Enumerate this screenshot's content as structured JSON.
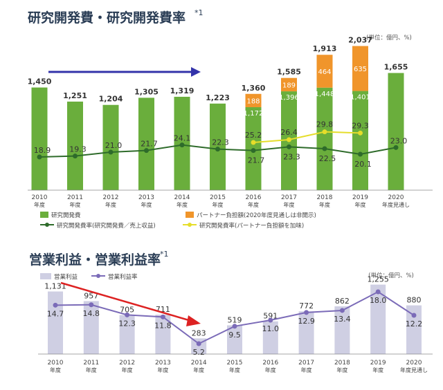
{
  "chart_data": [
    {
      "type": "bar",
      "title": "研究開発費・研究開発費率",
      "title_sup": "*1",
      "unit": "(単位：億円、%)",
      "x": [
        "2010",
        "2011",
        "2012",
        "2013",
        "2014",
        "2015",
        "2016",
        "2017",
        "2018",
        "2019",
        "2020"
      ],
      "x_sub": [
        "年度",
        "年度",
        "年度",
        "年度",
        "年度",
        "年度",
        "年度",
        "年度",
        "年度",
        "年度",
        "年度見通し"
      ],
      "ylim": [
        0,
        2100
      ],
      "series": [
        {
          "name": "研究開発費",
          "type": "bar",
          "color": "#6aae3c",
          "values": [
            1450,
            1251,
            1204,
            1305,
            1319,
            1223,
            1172,
            1396,
            1448,
            1401,
            1655
          ]
        },
        {
          "name": "パートナー負担額(2020年度見通しは非開示)",
          "type": "bar",
          "stacked": true,
          "color": "#f0952b",
          "values": [
            null,
            null,
            null,
            null,
            null,
            null,
            188,
            189,
            464,
            635,
            null
          ]
        },
        {
          "name": "研究開発費率(研究開発費／売上収益)",
          "type": "line",
          "color": "#2e6b2a",
          "values": [
            18.9,
            19.3,
            21.0,
            21.7,
            24.1,
            22.3,
            21.7,
            23.3,
            22.5,
            20.1,
            23.0
          ]
        },
        {
          "name": "研究開発費率(パートナー負担額を加味)",
          "type": "line",
          "color": "#e5dd2a",
          "values": [
            null,
            null,
            null,
            null,
            null,
            null,
            25.2,
            26.4,
            29.8,
            29.3,
            null
          ]
        }
      ],
      "totals": [
        null,
        null,
        null,
        null,
        null,
        null,
        1360,
        1585,
        1913,
        2037,
        null
      ],
      "total_labels": [
        "1,450",
        "1,251",
        "1,204",
        "1,305",
        "1,319",
        "1,223",
        "1,360",
        "1,585",
        "1,913",
        "2,037",
        "1,655"
      ],
      "inner_labels": [
        "",
        "",
        "",
        "",
        "",
        "",
        "1,172",
        "1,396",
        "1,448",
        "1,401",
        ""
      ],
      "partner_labels": [
        "",
        "",
        "",
        "",
        "",
        "",
        "188",
        "189",
        "464",
        "635",
        ""
      ],
      "rate_labels": [
        "18.9",
        "19.3",
        "21.0",
        "21.7",
        "24.1",
        "22.3",
        "21.7",
        "23.3",
        "22.5",
        "20.1",
        "23.0"
      ],
      "rate2_labels": [
        "",
        "",
        "",
        "",
        "",
        "",
        "25.2",
        "26.4",
        "29.8",
        "29.3",
        ""
      ],
      "legend": {
        "rd": "研究開発費",
        "partner": "パートナー負担額(2020年度見通しは非開示)",
        "rate": "研究開発費率(研究開発費／売上収益)",
        "rate2": "研究開発費率(パートナー負担額を加味)"
      },
      "arrow_color": "#3333aa"
    },
    {
      "type": "bar",
      "title": "営業利益・営業利益率",
      "title_sup": "*1",
      "unit": "(単位：億円、%)",
      "x": [
        "2010",
        "2011",
        "2012",
        "2013",
        "2014",
        "2015",
        "2016",
        "2017",
        "2018",
        "2019",
        "2020"
      ],
      "x_sub": [
        "年度",
        "年度",
        "年度",
        "年度",
        "年度",
        "年度",
        "年度",
        "年度",
        "年度",
        "年度",
        "年度見通し"
      ],
      "ylim": [
        0,
        1300
      ],
      "series": [
        {
          "name": "営業利益",
          "type": "bar",
          "color": "#cfcfe3",
          "values": [
            1131,
            957,
            705,
            711,
            283,
            519,
            591,
            772,
            862,
            1255,
            880
          ]
        },
        {
          "name": "営業利益率",
          "type": "line",
          "color": "#7b6bb8",
          "values": [
            14.7,
            14.8,
            12.3,
            11.8,
            5.2,
            9.5,
            11.0,
            12.9,
            13.4,
            18.0,
            12.2
          ]
        }
      ],
      "value_labels": [
        "1,131",
        "957",
        "705",
        "711",
        "283",
        "519",
        "591",
        "772",
        "862",
        "1,255",
        "880"
      ],
      "rate_labels": [
        "14.7",
        "14.8",
        "12.3",
        "11.8",
        "5.2",
        "9.5",
        "11.0",
        "12.9",
        "13.4",
        "18.0",
        "12.2"
      ],
      "legend": {
        "bar": "営業利益",
        "line": "営業利益率"
      },
      "arrow_color": "#dd2222"
    }
  ]
}
